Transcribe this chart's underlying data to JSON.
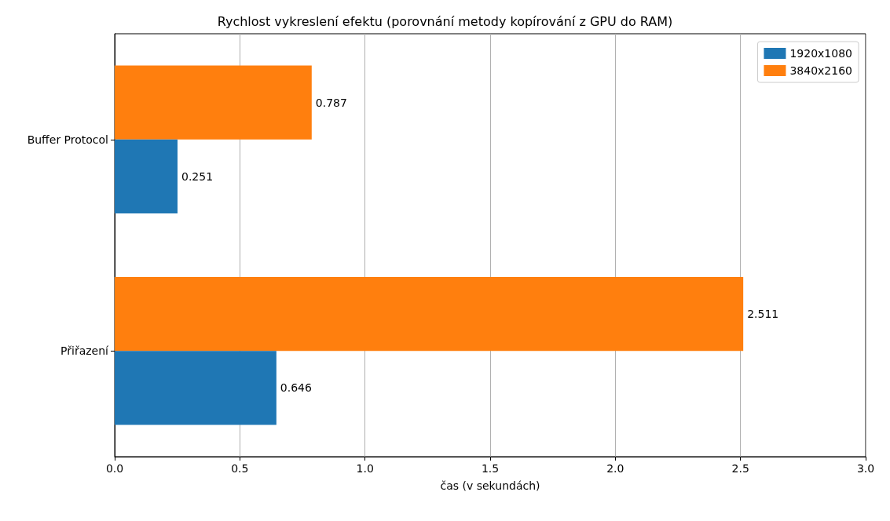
{
  "chart_data": {
    "type": "bar",
    "orientation": "horizontal",
    "title": "Rychlost vykreslení efektu (porovnání metody kopírování z GPU do RAM)",
    "xlabel": "čas (v sekundách)",
    "categories": [
      "Buffer Protocol",
      "Přiřazení"
    ],
    "series": [
      {
        "name": "1920x1080",
        "color": "#1f77b4",
        "values": [
          0.251,
          0.646
        ]
      },
      {
        "name": "3840x2160",
        "color": "#ff7f0e",
        "values": [
          0.787,
          2.511
        ]
      }
    ],
    "xlim": [
      0,
      3
    ],
    "xticks": [
      {
        "value": 0,
        "label": "0.0"
      },
      {
        "value": 0.5,
        "label": "0.5"
      },
      {
        "value": 1,
        "label": "1.0"
      },
      {
        "value": 1.5,
        "label": "1.5"
      },
      {
        "value": 2,
        "label": "2.0"
      },
      {
        "value": 2.5,
        "label": "2.5"
      },
      {
        "value": 3,
        "label": "3.0"
      }
    ],
    "grid": "x",
    "legend": "top right",
    "data_labels": true
  }
}
